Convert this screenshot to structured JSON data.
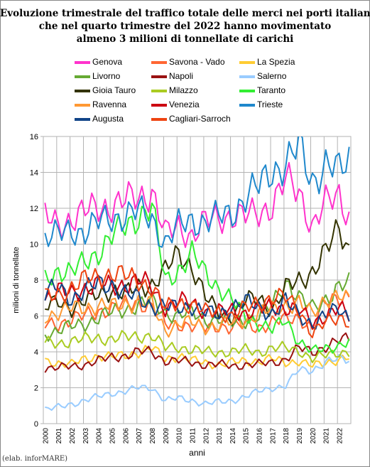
{
  "source_note": "(elab. inforMARE)",
  "chart_data": {
    "type": "line",
    "title_lines": [
      "Evoluzione trimestrale del traffico totale delle merci nei porti italiani",
      "che nel quarto trimestre del 2022 hanno movimentato",
      "almeno 3 milioni di tonnellate di carichi"
    ],
    "xlabel": "anni",
    "ylabel": "milioni di tonnellate",
    "ylim": [
      0,
      16
    ],
    "yticks": [
      0,
      2,
      4,
      6,
      8,
      10,
      12,
      14,
      16
    ],
    "x_start_year": 2000,
    "years": [
      "2000",
      "2001",
      "2002",
      "2003",
      "2004",
      "2005",
      "2006",
      "2007",
      "2008",
      "2009",
      "2010",
      "2011",
      "2012",
      "2013",
      "2014",
      "2015",
      "2016",
      "2017",
      "2018",
      "2019",
      "2020",
      "2021",
      "2022"
    ],
    "grid": true,
    "legend_position": "top",
    "series": [
      {
        "name": "Genova",
        "color": "#ff33cc",
        "anchors": [
          11.5,
          11.0,
          11.5,
          11.8,
          12.0,
          12.2,
          12.4,
          12.6,
          13.0,
          10.5,
          11.0,
          10.5,
          11.2,
          11.5,
          11.6,
          11.5,
          11.8,
          12.2,
          13.5,
          13.0,
          11.0,
          12.2,
          12.8,
          11.2
        ]
      },
      {
        "name": "Savona - Vado",
        "color": "#ff6633",
        "anchors": [
          5.5,
          5.6,
          5.8,
          6.0,
          6.3,
          6.4,
          6.6,
          6.8,
          6.5,
          5.5,
          5.6,
          5.4,
          5.3,
          5.5,
          5.3,
          5.5,
          5.4,
          5.6,
          5.8,
          6.0,
          5.2,
          6.8,
          7.2,
          7.0
        ]
      },
      {
        "name": "La Spezia",
        "color": "#ffcc33",
        "anchors": [
          3.5,
          3.4,
          3.3,
          3.6,
          3.8,
          3.7,
          3.8,
          4.0,
          4.2,
          3.6,
          3.8,
          3.5,
          3.4,
          3.3,
          3.4,
          3.5,
          3.5,
          3.6,
          3.4,
          3.5,
          3.2,
          3.4,
          3.6,
          3.7
        ]
      },
      {
        "name": "Livorno",
        "color": "#66aa33",
        "anchors": [
          5.0,
          5.2,
          5.4,
          5.6,
          5.9,
          6.2,
          6.4,
          6.6,
          6.8,
          6.2,
          6.0,
          6.2,
          5.8,
          5.8,
          5.6,
          5.8,
          6.0,
          6.6,
          8.0,
          7.0,
          6.4,
          7.0,
          7.6,
          7.8
        ]
      },
      {
        "name": "Napoli",
        "color": "#991111",
        "anchors": [
          3.1,
          3.1,
          3.2,
          3.3,
          3.5,
          3.7,
          3.8,
          4.0,
          4.0,
          3.5,
          3.5,
          3.4,
          3.3,
          3.3,
          3.2,
          3.3,
          3.3,
          3.4,
          3.6,
          4.2,
          4.0,
          4.3,
          4.6,
          4.8
        ]
      },
      {
        "name": "Salerno",
        "color": "#99ccff",
        "anchors": [
          0.8,
          0.9,
          1.1,
          1.3,
          1.5,
          1.7,
          1.8,
          2.0,
          2.0,
          1.3,
          1.4,
          1.3,
          1.1,
          1.2,
          1.3,
          1.5,
          1.8,
          2.0,
          2.1,
          3.0,
          3.0,
          3.4,
          3.6,
          3.6
        ]
      },
      {
        "name": "Gioia Tauro",
        "color": "#333300",
        "anchors": [
          6.4,
          6.8,
          6.5,
          6.8,
          7.2,
          7.5,
          7.2,
          7.6,
          7.8,
          8.5,
          9.5,
          8.8,
          7.0,
          6.2,
          6.0,
          6.8,
          7.0,
          6.4,
          7.5,
          8.0,
          8.5,
          9.5,
          11.0,
          9.3
        ]
      },
      {
        "name": "Milazzo",
        "color": "#aacc22",
        "anchors": [
          4.5,
          4.5,
          4.6,
          4.7,
          4.8,
          4.7,
          4.8,
          4.9,
          4.9,
          4.2,
          4.3,
          4.1,
          4.0,
          4.0,
          4.0,
          4.1,
          4.0,
          4.2,
          4.2,
          4.1,
          3.6,
          3.8,
          4.0,
          4.0
        ]
      },
      {
        "name": "Taranto",
        "color": "#33ee33",
        "anchors": [
          8.0,
          8.6,
          8.4,
          9.0,
          9.6,
          10.4,
          11.0,
          11.6,
          12.0,
          8.0,
          8.6,
          9.4,
          8.4,
          7.6,
          6.8,
          6.0,
          5.6,
          5.2,
          5.8,
          4.6,
          4.0,
          4.2,
          4.4,
          4.6
        ]
      },
      {
        "name": "Ravenna",
        "color": "#ff9933",
        "anchors": [
          6.0,
          6.2,
          6.4,
          6.5,
          6.6,
          6.5,
          6.7,
          6.8,
          6.6,
          5.2,
          5.6,
          5.6,
          5.4,
          5.5,
          5.6,
          5.8,
          6.2,
          6.3,
          6.6,
          6.8,
          6.0,
          7.0,
          7.2,
          6.6
        ]
      },
      {
        "name": "Venezia",
        "color": "#cc0011",
        "anchors": [
          7.0,
          7.4,
          7.2,
          7.6,
          7.8,
          7.6,
          7.8,
          8.0,
          7.6,
          6.5,
          6.8,
          6.7,
          6.3,
          6.2,
          6.3,
          6.2,
          6.3,
          6.5,
          6.5,
          6.3,
          5.6,
          6.1,
          6.4,
          5.8
        ]
      },
      {
        "name": "Trieste",
        "color": "#1f88cc",
        "anchors": [
          10.4,
          10.5,
          10.8,
          10.7,
          11.2,
          11.5,
          11.6,
          11.8,
          11.5,
          10.0,
          11.0,
          11.4,
          11.2,
          11.5,
          11.8,
          12.6,
          13.2,
          14.2,
          14.4,
          15.4,
          13.6,
          14.4,
          14.0,
          15.2
        ]
      },
      {
        "name": "Augusta",
        "color": "#114488",
        "anchors": [
          7.2,
          7.6,
          7.0,
          7.4,
          7.8,
          7.8,
          7.2,
          7.0,
          6.6,
          6.5,
          6.4,
          6.6,
          6.2,
          6.0,
          6.6,
          6.8,
          6.4,
          6.2,
          6.8,
          6.0,
          5.6,
          6.0,
          6.4,
          5.8
        ]
      },
      {
        "name": "Cagliari-Sarroch",
        "color": "#ee4411",
        "anchors": [
          7.0,
          7.2,
          7.6,
          8.0,
          8.2,
          8.4,
          8.2,
          8.0,
          7.6,
          6.4,
          6.8,
          6.6,
          6.2,
          6.3,
          6.0,
          6.4,
          6.8,
          7.0,
          7.0,
          6.4,
          5.0,
          5.6,
          6.0,
          5.6
        ]
      }
    ],
    "points_per_year": 4,
    "total_points": 92,
    "x_tick_every": 4
  }
}
